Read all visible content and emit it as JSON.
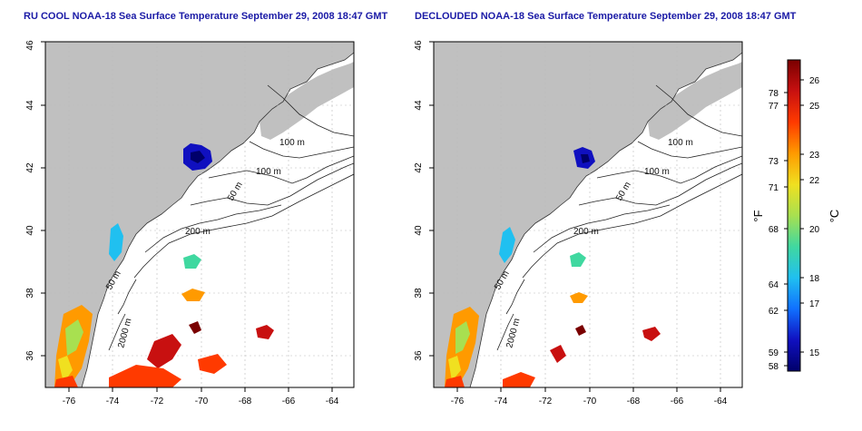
{
  "panels": [
    {
      "title": "RU COOL NOAA-18 Sea Surface Temperature September 29, 2008 18:47 GMT",
      "contour_labels": [
        "100 m",
        "100 m",
        "50 m",
        "200 m",
        "50 m",
        "2000 m"
      ],
      "x_ticks": [
        "-76",
        "-74",
        "-72",
        "-70",
        "-68",
        "-66",
        "-64"
      ],
      "y_ticks": [
        "36",
        "38",
        "40",
        "42",
        "44",
        "46"
      ]
    },
    {
      "title": "DECLOUDED NOAA-18 Sea Surface Temperature September 29, 2008 18:47 GMT",
      "contour_labels": [
        "100 m",
        "100 m",
        "50 m",
        "200 m",
        "50 m",
        "2000 m"
      ],
      "x_ticks": [
        "-76",
        "-74",
        "-72",
        "-70",
        "-68",
        "-66",
        "-64"
      ],
      "y_ticks": [
        "36",
        "38",
        "40",
        "42",
        "44",
        "46"
      ]
    }
  ],
  "colorbar": {
    "fahrenheit_label": "°F",
    "celsius_label": "°C",
    "fahrenheit_ticks": [
      "78",
      "77",
      "73",
      "71",
      "68",
      "64",
      "62",
      "59",
      "58"
    ],
    "celsius_ticks": [
      "26",
      "25",
      "23",
      "22",
      "20",
      "18",
      "17",
      "15"
    ],
    "gradient_colors": [
      "#7a0000",
      "#c81010",
      "#ff3a00",
      "#ff9a00",
      "#f0e020",
      "#a8e050",
      "#40d8a0",
      "#20c0f0",
      "#1070ff",
      "#1010c0",
      "#00006a"
    ]
  },
  "colors": {
    "land": "#c0c0c0",
    "ocean": "#ffffff",
    "contour": "#222222",
    "grid": "#bbbbbb",
    "title": "#1a1aa6"
  }
}
